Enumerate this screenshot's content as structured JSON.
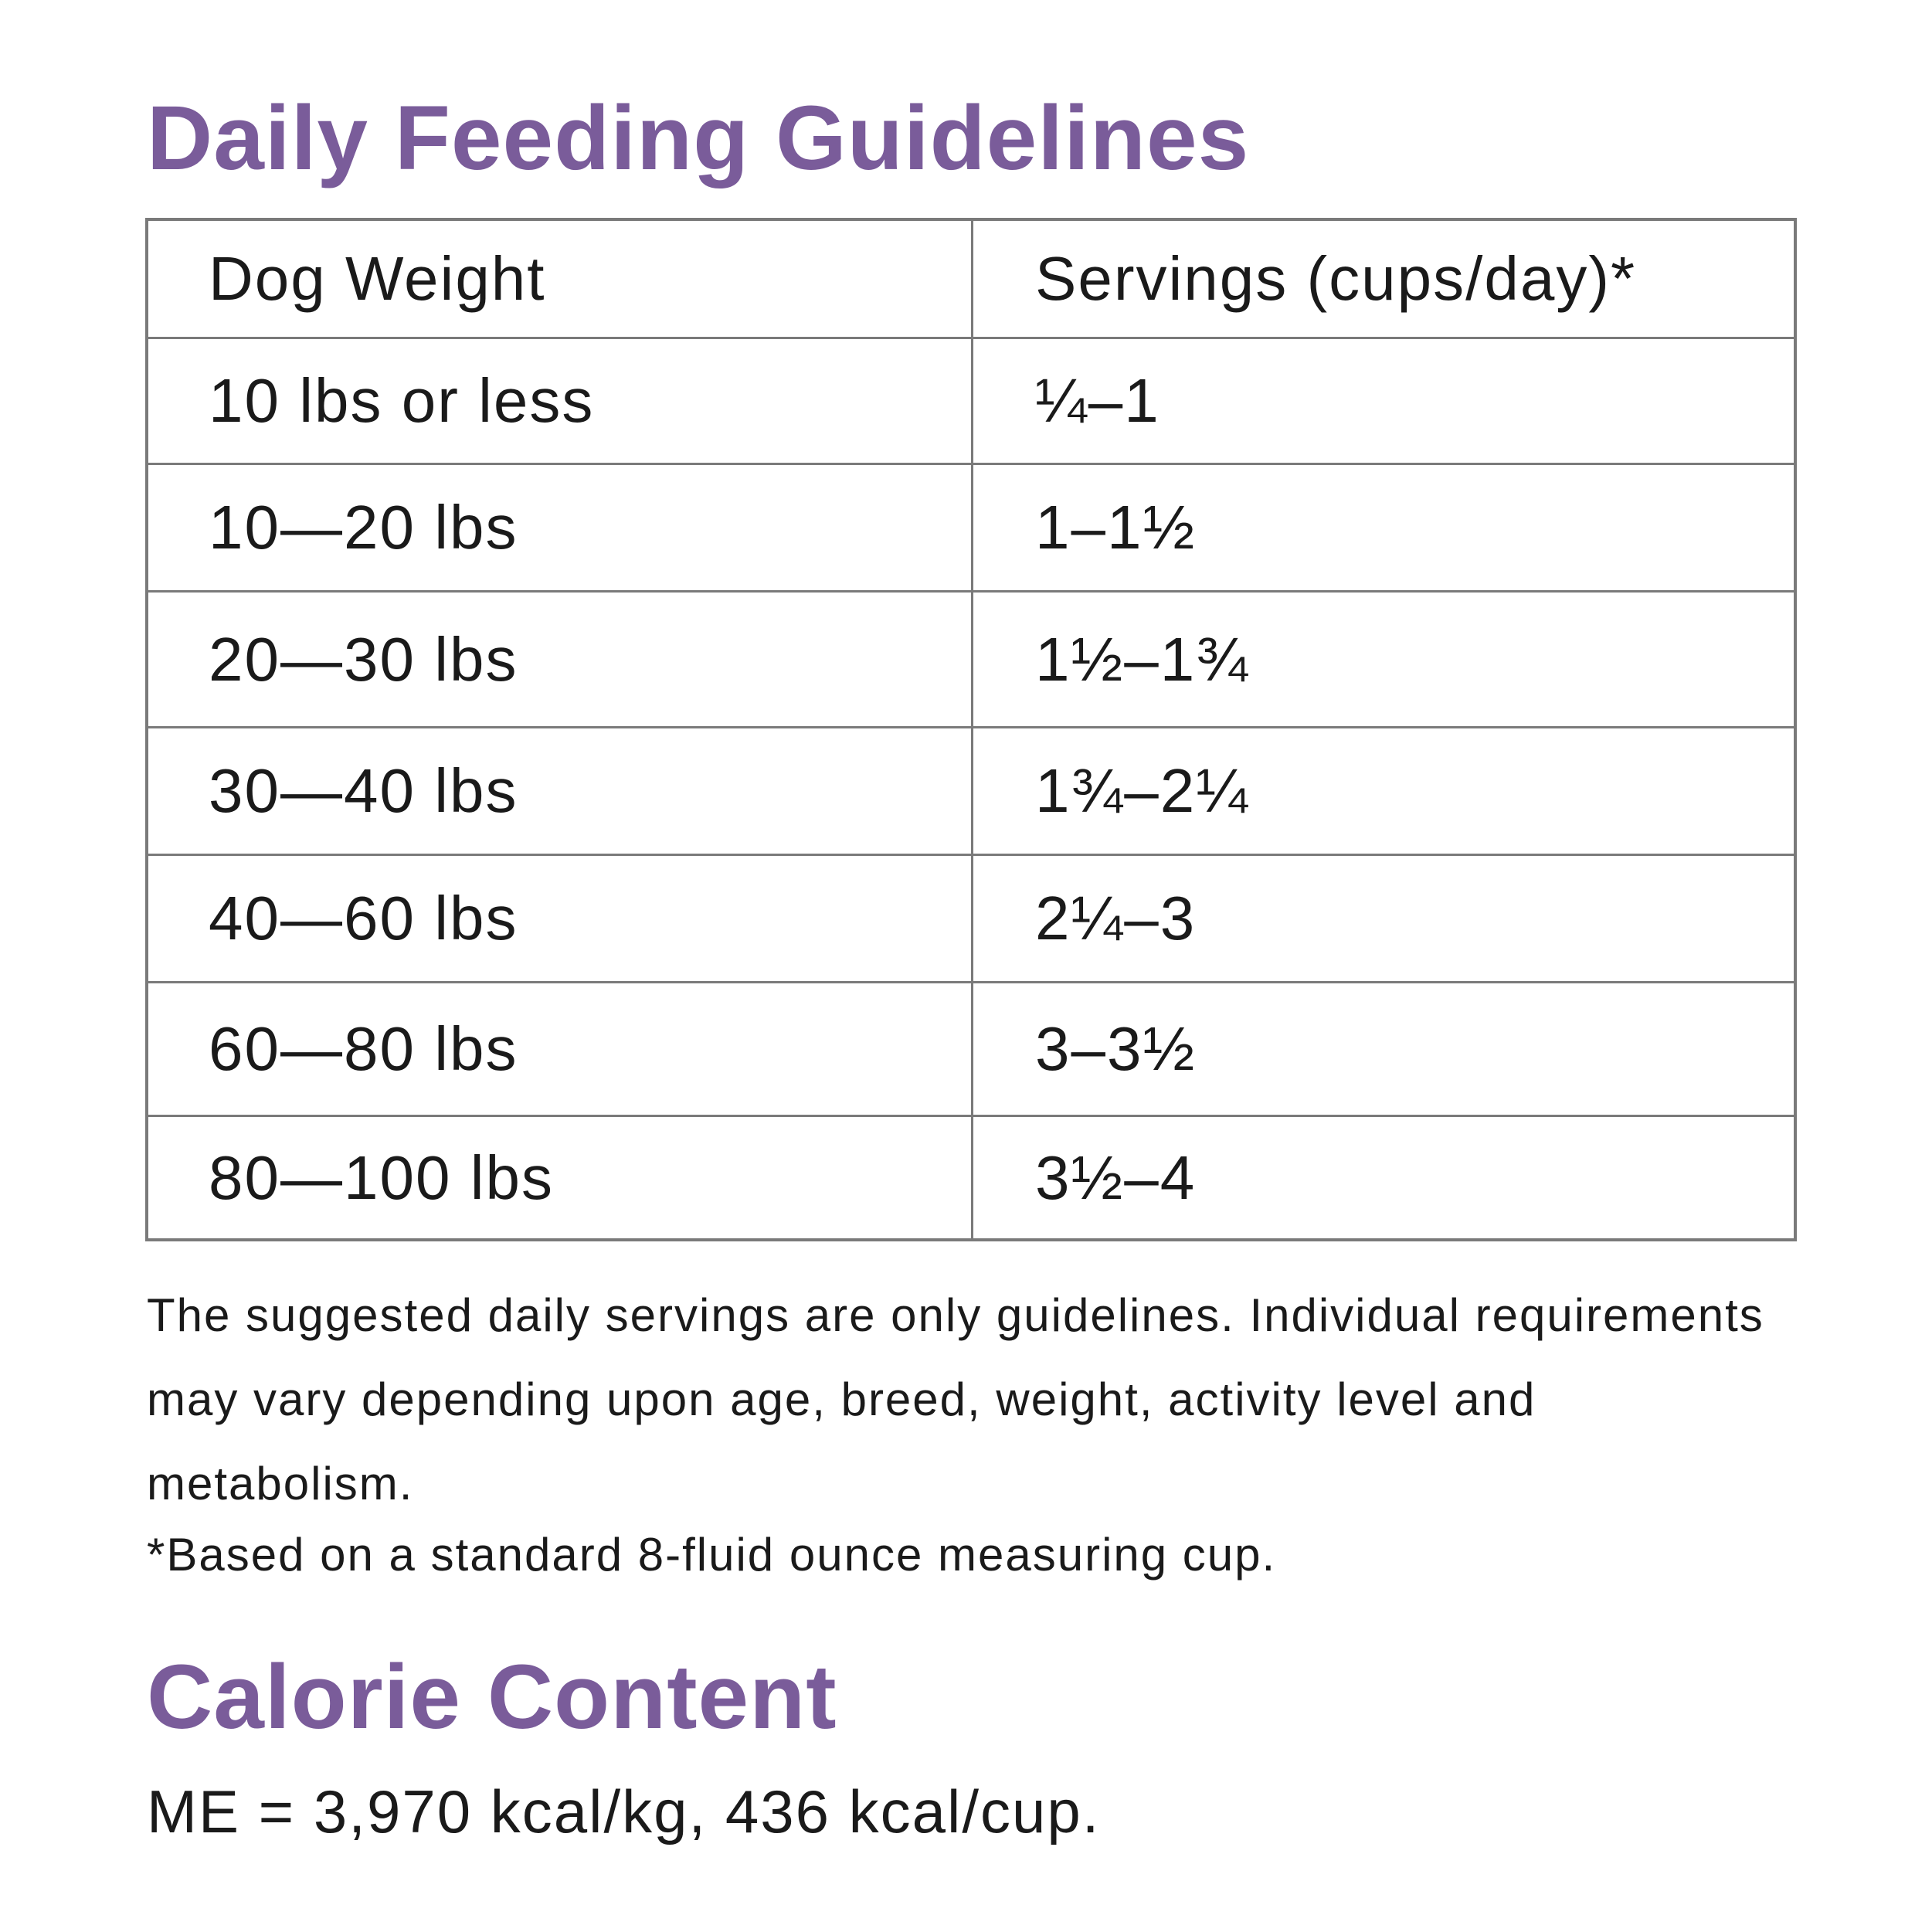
{
  "feeding": {
    "heading": "Daily Feeding Guidelines",
    "columns": [
      "Dog Weight",
      "Servings (cups/day)*"
    ],
    "rows": [
      {
        "weight": "10 lbs or less",
        "servings": "¼–1"
      },
      {
        "weight": "10—20 lbs",
        "servings": "1–1½"
      },
      {
        "weight": "20—30 lbs",
        "servings": "1½–1¾"
      },
      {
        "weight": "30—40 lbs",
        "servings": "1¾–2¼"
      },
      {
        "weight": "40—60 lbs",
        "servings": "2¼–3"
      },
      {
        "weight": "60—80 lbs",
        "servings": "3–3½"
      },
      {
        "weight": "80—100 lbs",
        "servings": "3½–4"
      }
    ],
    "note": "The suggested daily servings are only guidelines. Individual requirements may vary depending upon age, breed, weight, activity level and metabolism.",
    "footnote": "*Based on a standard 8-fluid ounce measuring cup."
  },
  "calorie": {
    "heading": "Calorie Content",
    "text": "ME = 3,970 kcal/kg, 436 kcal/cup."
  },
  "colors": {
    "heading": "#7a5c9a",
    "text": "#1a1a1a",
    "table_border": "#7a7a7a"
  }
}
